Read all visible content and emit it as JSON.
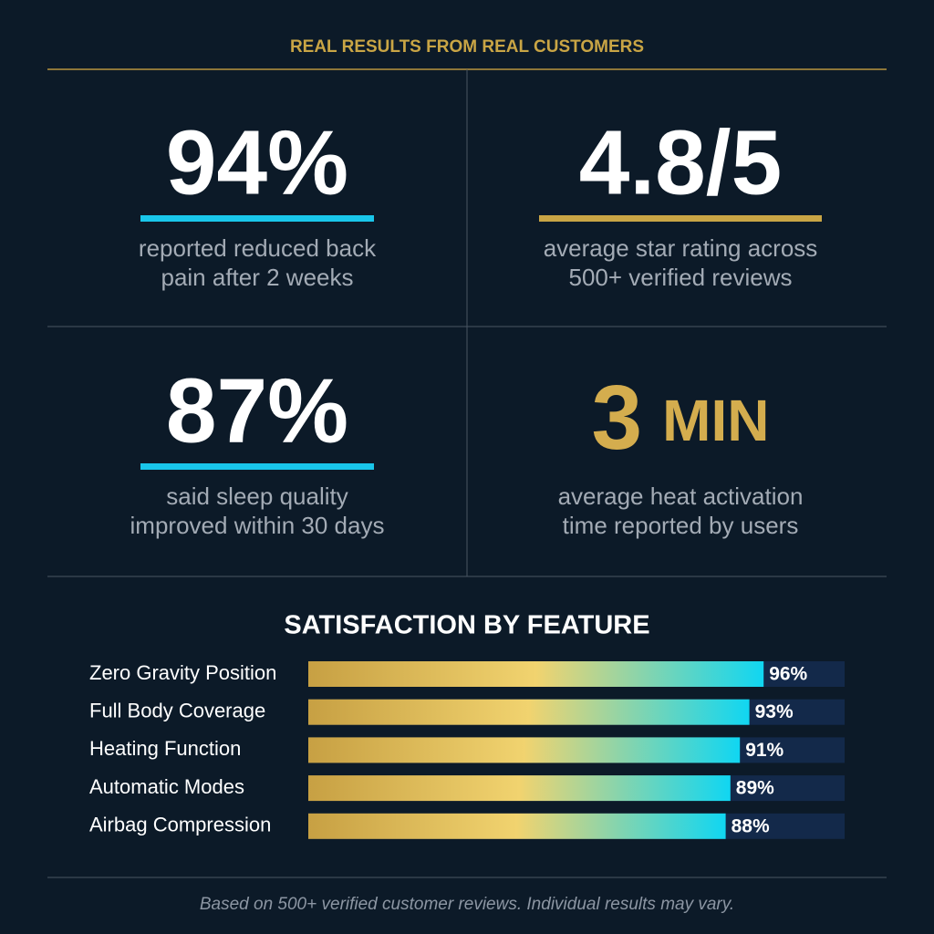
{
  "header": {
    "title": "REAL RESULTS FROM REAL CUSTOMERS"
  },
  "stats": [
    {
      "value": "94%",
      "lines": [
        "reported reduced back",
        "pain after 2 weeks"
      ],
      "accent": "#19c6ea"
    },
    {
      "value": "4.8/5",
      "lines": [
        "average star rating across",
        "500+ verified reviews"
      ],
      "accent": "#c9a545"
    },
    {
      "value": "87%",
      "lines": [
        "said sleep quality",
        "improved within 30 days"
      ],
      "accent": "#19c6ea"
    },
    {
      "value": "3",
      "unit": "MIN",
      "lines": [
        "average heat activation",
        "time reported by users"
      ],
      "accent": "#d4ad4e"
    }
  ],
  "chart_data": {
    "type": "bar",
    "orientation": "horizontal",
    "title": "SATISFACTION BY FEATURE",
    "categories": [
      "Zero Gravity Position",
      "Full Body Coverage",
      "Heating Function",
      "Automatic Modes",
      "Airbag Compression"
    ],
    "values": [
      96,
      93,
      91,
      89,
      88
    ],
    "value_labels": [
      "96%",
      "93%",
      "91%",
      "89%",
      "88%"
    ],
    "xlim": [
      0,
      100
    ],
    "gradient": [
      "#c7a043",
      "#f1d36f",
      "#10d6f2"
    ],
    "track_color": "#13294a"
  },
  "footer": {
    "note": "Based on 500+ verified customer reviews. Individual results may vary."
  }
}
